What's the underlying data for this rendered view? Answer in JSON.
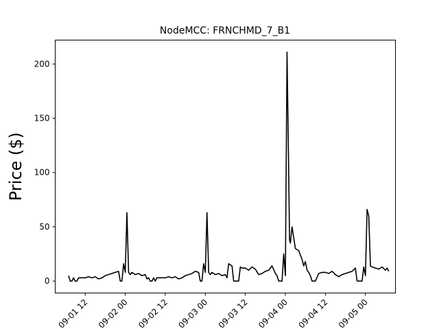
{
  "chart_data": {
    "type": "line",
    "title": "NodeMCC: FRNCHMD_7_B1",
    "xlabel": "",
    "ylabel": "Price ($)",
    "ylim": [
      -11,
      222
    ],
    "yticks": [
      0,
      50,
      100,
      150,
      200
    ],
    "xlim": [
      "2018-09-01 03:00",
      "2018-09-05 09:00"
    ],
    "xticks": [
      {
        "t": "2018-09-01 12:00",
        "label": "09-01 12"
      },
      {
        "t": "2018-09-02 00:00",
        "label": "09-02 00"
      },
      {
        "t": "2018-09-02 12:00",
        "label": "09-02 12"
      },
      {
        "t": "2018-09-03 00:00",
        "label": "09-03 00"
      },
      {
        "t": "2018-09-03 12:00",
        "label": "09-03 12"
      },
      {
        "t": "2018-09-04 00:00",
        "label": "09-04 00"
      },
      {
        "t": "2018-09-04 12:00",
        "label": "09-04 12"
      },
      {
        "t": "2018-09-05 00:00",
        "label": "09-05 00"
      }
    ],
    "grid": false,
    "series": [
      {
        "color": "#000000",
        "points": [
          [
            "2018-09-01 07:00",
            5
          ],
          [
            "2018-09-01 07:30",
            0
          ],
          [
            "2018-09-01 08:00",
            0
          ],
          [
            "2018-09-01 08:30",
            3
          ],
          [
            "2018-09-01 09:00",
            0
          ],
          [
            "2018-09-01 09:30",
            0
          ],
          [
            "2018-09-01 10:00",
            3
          ],
          [
            "2018-09-01 11:00",
            3
          ],
          [
            "2018-09-01 12:00",
            3
          ],
          [
            "2018-09-01 13:00",
            4
          ],
          [
            "2018-09-01 14:00",
            3
          ],
          [
            "2018-09-01 15:00",
            4
          ],
          [
            "2018-09-01 16:00",
            2
          ],
          [
            "2018-09-01 17:00",
            3
          ],
          [
            "2018-09-01 18:00",
            5
          ],
          [
            "2018-09-01 19:00",
            6
          ],
          [
            "2018-09-01 20:00",
            7
          ],
          [
            "2018-09-01 21:00",
            8
          ],
          [
            "2018-09-01 22:00",
            9
          ],
          [
            "2018-09-01 22:30",
            0
          ],
          [
            "2018-09-01 23:00",
            0
          ],
          [
            "2018-09-01 23:30",
            16
          ],
          [
            "2018-09-02 00:00",
            8
          ],
          [
            "2018-09-02 00:30",
            63
          ],
          [
            "2018-09-02 01:00",
            8
          ],
          [
            "2018-09-02 01:30",
            6
          ],
          [
            "2018-09-02 02:00",
            8
          ],
          [
            "2018-09-02 03:00",
            6
          ],
          [
            "2018-09-02 04:00",
            7
          ],
          [
            "2018-09-02 05:00",
            5
          ],
          [
            "2018-09-02 06:00",
            6
          ],
          [
            "2018-09-02 06:30",
            2
          ],
          [
            "2018-09-02 07:00",
            3
          ],
          [
            "2018-09-02 07:30",
            0
          ],
          [
            "2018-09-02 08:00",
            0
          ],
          [
            "2018-09-02 08:30",
            3
          ],
          [
            "2018-09-02 09:00",
            0
          ],
          [
            "2018-09-02 09:30",
            3
          ],
          [
            "2018-09-02 10:00",
            3
          ],
          [
            "2018-09-02 11:00",
            3
          ],
          [
            "2018-09-02 12:00",
            3
          ],
          [
            "2018-09-02 13:00",
            4
          ],
          [
            "2018-09-02 14:00",
            3
          ],
          [
            "2018-09-02 15:00",
            4
          ],
          [
            "2018-09-02 16:00",
            2
          ],
          [
            "2018-09-02 17:00",
            3
          ],
          [
            "2018-09-02 18:00",
            5
          ],
          [
            "2018-09-02 19:00",
            6
          ],
          [
            "2018-09-02 20:00",
            7
          ],
          [
            "2018-09-02 21:00",
            9
          ],
          [
            "2018-09-02 22:00",
            8
          ],
          [
            "2018-09-02 22:30",
            0
          ],
          [
            "2018-09-02 23:00",
            0
          ],
          [
            "2018-09-02 23:30",
            16
          ],
          [
            "2018-09-03 00:00",
            8
          ],
          [
            "2018-09-03 00:30",
            63
          ],
          [
            "2018-09-03 01:00",
            8
          ],
          [
            "2018-09-03 01:30",
            6
          ],
          [
            "2018-09-03 02:00",
            8
          ],
          [
            "2018-09-03 03:00",
            6
          ],
          [
            "2018-09-03 04:00",
            7
          ],
          [
            "2018-09-03 05:00",
            5
          ],
          [
            "2018-09-03 06:00",
            6
          ],
          [
            "2018-09-03 06:30",
            3
          ],
          [
            "2018-09-03 07:00",
            16
          ],
          [
            "2018-09-03 08:00",
            14
          ],
          [
            "2018-09-03 08:30",
            0
          ],
          [
            "2018-09-03 09:00",
            0
          ],
          [
            "2018-09-03 10:00",
            0
          ],
          [
            "2018-09-03 10:30",
            13
          ],
          [
            "2018-09-03 11:00",
            12
          ],
          [
            "2018-09-03 12:00",
            12
          ],
          [
            "2018-09-03 13:00",
            10
          ],
          [
            "2018-09-03 14:00",
            13
          ],
          [
            "2018-09-03 15:00",
            11
          ],
          [
            "2018-09-03 16:00",
            6
          ],
          [
            "2018-09-03 17:00",
            7
          ],
          [
            "2018-09-03 18:00",
            9
          ],
          [
            "2018-09-03 19:00",
            10
          ],
          [
            "2018-09-03 20:00",
            14
          ],
          [
            "2018-09-03 21:00",
            7
          ],
          [
            "2018-09-03 21:30",
            5
          ],
          [
            "2018-09-03 22:00",
            0
          ],
          [
            "2018-09-03 23:00",
            0
          ],
          [
            "2018-09-03 23:30",
            25
          ],
          [
            "2018-09-04 00:00",
            5
          ],
          [
            "2018-09-04 00:30",
            211
          ],
          [
            "2018-09-04 01:00",
            100
          ],
          [
            "2018-09-04 01:15",
            38
          ],
          [
            "2018-09-04 01:30",
            35
          ],
          [
            "2018-09-04 02:00",
            50
          ],
          [
            "2018-09-04 02:30",
            40
          ],
          [
            "2018-09-04 03:00",
            30
          ],
          [
            "2018-09-04 04:00",
            28
          ],
          [
            "2018-09-04 05:00",
            20
          ],
          [
            "2018-09-04 05:30",
            14
          ],
          [
            "2018-09-04 06:00",
            18
          ],
          [
            "2018-09-04 06:30",
            10
          ],
          [
            "2018-09-04 07:00",
            8
          ],
          [
            "2018-09-04 07:30",
            5
          ],
          [
            "2018-09-04 08:00",
            0
          ],
          [
            "2018-09-04 08:30",
            0
          ],
          [
            "2018-09-04 09:00",
            0
          ],
          [
            "2018-09-04 10:00",
            7
          ],
          [
            "2018-09-04 11:00",
            8
          ],
          [
            "2018-09-04 12:00",
            8
          ],
          [
            "2018-09-04 13:00",
            7
          ],
          [
            "2018-09-04 14:00",
            9
          ],
          [
            "2018-09-04 15:00",
            6
          ],
          [
            "2018-09-04 16:00",
            4
          ],
          [
            "2018-09-04 17:00",
            6
          ],
          [
            "2018-09-04 18:00",
            7
          ],
          [
            "2018-09-04 19:00",
            8
          ],
          [
            "2018-09-04 20:00",
            9
          ],
          [
            "2018-09-04 21:00",
            12
          ],
          [
            "2018-09-04 21:30",
            0
          ],
          [
            "2018-09-04 22:00",
            0
          ],
          [
            "2018-09-04 23:00",
            0
          ],
          [
            "2018-09-04 23:30",
            13
          ],
          [
            "2018-09-05 00:00",
            5
          ],
          [
            "2018-09-05 00:30",
            66
          ],
          [
            "2018-09-05 01:00",
            60
          ],
          [
            "2018-09-05 01:30",
            14
          ],
          [
            "2018-09-05 02:00",
            13
          ],
          [
            "2018-09-05 03:00",
            12
          ],
          [
            "2018-09-05 04:00",
            11
          ],
          [
            "2018-09-05 05:00",
            13
          ],
          [
            "2018-09-05 06:00",
            10
          ],
          [
            "2018-09-05 06:30",
            12
          ],
          [
            "2018-09-05 07:00",
            9
          ]
        ]
      }
    ]
  }
}
